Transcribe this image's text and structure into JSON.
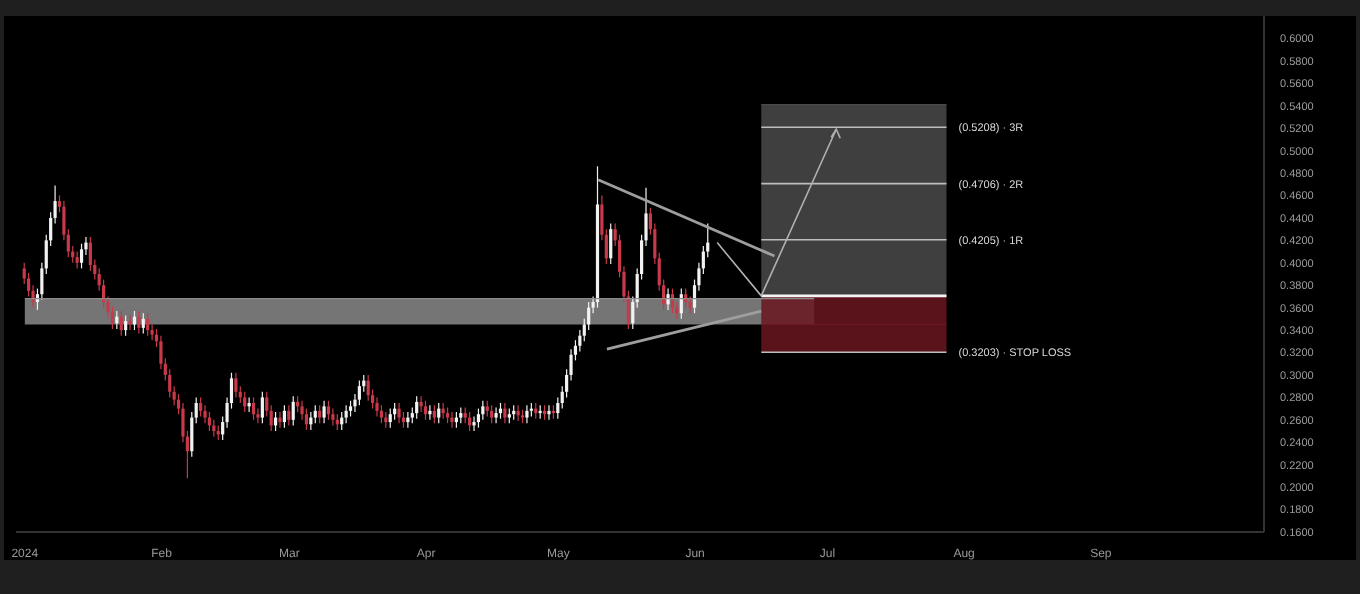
{
  "chart_data": {
    "type": "candlestick",
    "xlim": [
      "2023-12-30",
      "2024-10-08"
    ],
    "xticks": [
      {
        "value": "2024-01-01",
        "label": "2024"
      },
      {
        "value": "2024-02-01",
        "label": "Feb"
      },
      {
        "value": "2024-03-01",
        "label": "Mar"
      },
      {
        "value": "2024-04-01",
        "label": "Apr"
      },
      {
        "value": "2024-05-01",
        "label": "May"
      },
      {
        "value": "2024-06-01",
        "label": "Jun"
      },
      {
        "value": "2024-07-01",
        "label": "Jul"
      },
      {
        "value": "2024-08-01",
        "label": "Aug"
      },
      {
        "value": "2024-09-01",
        "label": "Sep"
      }
    ],
    "ylim": [
      0.16,
      0.62
    ],
    "yticks": [
      {
        "value": 0.16,
        "label": "0.1600"
      },
      {
        "value": 0.18,
        "label": "0.1800"
      },
      {
        "value": 0.2,
        "label": "0.2000"
      },
      {
        "value": 0.22,
        "label": "0.2200"
      },
      {
        "value": 0.24,
        "label": "0.2400"
      },
      {
        "value": 0.26,
        "label": "0.2600"
      },
      {
        "value": 0.28,
        "label": "0.2800"
      },
      {
        "value": 0.3,
        "label": "0.3000"
      },
      {
        "value": 0.32,
        "label": "0.3200"
      },
      {
        "value": 0.34,
        "label": "0.3400"
      },
      {
        "value": 0.36,
        "label": "0.3600"
      },
      {
        "value": 0.38,
        "label": "0.3800"
      },
      {
        "value": 0.4,
        "label": "0.4000"
      },
      {
        "value": 0.42,
        "label": "0.4200"
      },
      {
        "value": 0.44,
        "label": "0.4400"
      },
      {
        "value": 0.46,
        "label": "0.4600"
      },
      {
        "value": 0.48,
        "label": "0.4800"
      },
      {
        "value": 0.5,
        "label": "0.5000"
      },
      {
        "value": 0.52,
        "label": "0.5200"
      },
      {
        "value": 0.54,
        "label": "0.5400"
      },
      {
        "value": 0.56,
        "label": "0.5600"
      },
      {
        "value": 0.58,
        "label": "0.5800"
      },
      {
        "value": 0.6,
        "label": "0.6000"
      }
    ],
    "x": [
      "2024-01-01",
      "2024-01-02",
      "2024-01-03",
      "2024-01-04",
      "2024-01-05",
      "2024-01-06",
      "2024-01-07",
      "2024-01-08",
      "2024-01-09",
      "2024-01-10",
      "2024-01-11",
      "2024-01-12",
      "2024-01-13",
      "2024-01-14",
      "2024-01-15",
      "2024-01-16",
      "2024-01-17",
      "2024-01-18",
      "2024-01-19",
      "2024-01-20",
      "2024-01-21",
      "2024-01-22",
      "2024-01-23",
      "2024-01-24",
      "2024-01-25",
      "2024-01-26",
      "2024-01-27",
      "2024-01-28",
      "2024-01-29",
      "2024-01-30",
      "2024-01-31",
      "2024-02-01",
      "2024-02-02",
      "2024-02-03",
      "2024-02-04",
      "2024-02-05",
      "2024-02-06",
      "2024-02-07",
      "2024-02-08",
      "2024-02-09",
      "2024-02-10",
      "2024-02-11",
      "2024-02-12",
      "2024-02-13",
      "2024-02-14",
      "2024-02-15",
      "2024-02-16",
      "2024-02-17",
      "2024-02-18",
      "2024-02-19",
      "2024-02-20",
      "2024-02-21",
      "2024-02-22",
      "2024-02-23",
      "2024-02-24",
      "2024-02-25",
      "2024-02-26",
      "2024-02-27",
      "2024-02-28",
      "2024-02-29",
      "2024-03-01",
      "2024-03-02",
      "2024-03-03",
      "2024-03-04",
      "2024-03-05",
      "2024-03-06",
      "2024-03-07",
      "2024-03-08",
      "2024-03-09",
      "2024-03-10",
      "2024-03-11",
      "2024-03-12",
      "2024-03-13",
      "2024-03-14",
      "2024-03-15",
      "2024-03-16",
      "2024-03-17",
      "2024-03-18",
      "2024-03-19",
      "2024-03-20",
      "2024-03-21",
      "2024-03-22",
      "2024-03-23",
      "2024-03-24",
      "2024-03-25",
      "2024-03-26",
      "2024-03-27",
      "2024-03-28",
      "2024-03-29",
      "2024-03-30",
      "2024-03-31",
      "2024-04-01",
      "2024-04-02",
      "2024-04-03",
      "2024-04-04",
      "2024-04-05",
      "2024-04-06",
      "2024-04-07",
      "2024-04-08",
      "2024-04-09",
      "2024-04-10",
      "2024-04-11",
      "2024-04-12",
      "2024-04-13",
      "2024-04-14",
      "2024-04-15",
      "2024-04-16",
      "2024-04-17",
      "2024-04-18",
      "2024-04-19",
      "2024-04-20",
      "2024-04-21",
      "2024-04-22",
      "2024-04-23",
      "2024-04-24",
      "2024-04-25",
      "2024-04-26",
      "2024-04-27",
      "2024-04-28",
      "2024-04-29",
      "2024-04-30",
      "2024-05-01",
      "2024-05-02",
      "2024-05-03",
      "2024-05-04",
      "2024-05-05",
      "2024-05-06",
      "2024-05-07",
      "2024-05-08",
      "2024-05-09",
      "2024-05-10",
      "2024-05-11",
      "2024-05-12",
      "2024-05-13",
      "2024-05-14",
      "2024-05-15",
      "2024-05-16",
      "2024-05-17",
      "2024-05-18",
      "2024-05-19",
      "2024-05-20",
      "2024-05-21",
      "2024-05-22",
      "2024-05-23",
      "2024-05-24",
      "2024-05-25",
      "2024-05-26",
      "2024-05-27",
      "2024-05-28",
      "2024-05-29",
      "2024-05-30",
      "2024-05-31",
      "2024-06-01",
      "2024-06-02",
      "2024-06-03",
      "2024-06-04"
    ],
    "ohlc": [
      [
        0.395,
        0.4,
        0.381,
        0.386
      ],
      [
        0.386,
        0.391,
        0.37,
        0.375
      ],
      [
        0.375,
        0.38,
        0.36,
        0.365
      ],
      [
        0.365,
        0.377,
        0.358,
        0.372
      ],
      [
        0.372,
        0.4,
        0.367,
        0.395
      ],
      [
        0.395,
        0.425,
        0.39,
        0.42
      ],
      [
        0.42,
        0.445,
        0.415,
        0.44
      ],
      [
        0.44,
        0.469,
        0.435,
        0.455
      ],
      [
        0.455,
        0.46,
        0.445,
        0.45
      ],
      [
        0.45,
        0.455,
        0.42,
        0.425
      ],
      [
        0.425,
        0.43,
        0.405,
        0.41
      ],
      [
        0.41,
        0.415,
        0.4,
        0.405
      ],
      [
        0.405,
        0.41,
        0.395,
        0.4
      ],
      [
        0.4,
        0.417,
        0.395,
        0.412
      ],
      [
        0.412,
        0.423,
        0.407,
        0.418
      ],
      [
        0.418,
        0.423,
        0.393,
        0.398
      ],
      [
        0.398,
        0.403,
        0.385,
        0.39
      ],
      [
        0.39,
        0.395,
        0.375,
        0.38
      ],
      [
        0.38,
        0.385,
        0.36,
        0.365
      ],
      [
        0.365,
        0.37,
        0.351,
        0.356
      ],
      [
        0.356,
        0.361,
        0.341,
        0.346
      ],
      [
        0.346,
        0.357,
        0.341,
        0.352
      ],
      [
        0.352,
        0.357,
        0.335,
        0.34
      ],
      [
        0.34,
        0.353,
        0.335,
        0.348
      ],
      [
        0.348,
        0.353,
        0.34,
        0.345
      ],
      [
        0.345,
        0.357,
        0.34,
        0.352
      ],
      [
        0.352,
        0.357,
        0.337,
        0.342
      ],
      [
        0.342,
        0.355,
        0.337,
        0.35
      ],
      [
        0.35,
        0.355,
        0.335,
        0.34
      ],
      [
        0.34,
        0.345,
        0.331,
        0.336
      ],
      [
        0.336,
        0.341,
        0.325,
        0.33
      ],
      [
        0.33,
        0.335,
        0.305,
        0.31
      ],
      [
        0.31,
        0.315,
        0.295,
        0.3
      ],
      [
        0.3,
        0.305,
        0.28,
        0.285
      ],
      [
        0.285,
        0.29,
        0.273,
        0.278
      ],
      [
        0.278,
        0.283,
        0.265,
        0.27
      ],
      [
        0.27,
        0.275,
        0.24,
        0.245
      ],
      [
        0.245,
        0.25,
        0.208,
        0.232
      ],
      [
        0.232,
        0.267,
        0.227,
        0.262
      ],
      [
        0.262,
        0.28,
        0.257,
        0.275
      ],
      [
        0.275,
        0.28,
        0.263,
        0.268
      ],
      [
        0.268,
        0.273,
        0.257,
        0.262
      ],
      [
        0.262,
        0.267,
        0.25,
        0.255
      ],
      [
        0.255,
        0.26,
        0.245,
        0.25
      ],
      [
        0.25,
        0.255,
        0.242,
        0.247
      ],
      [
        0.247,
        0.263,
        0.242,
        0.258
      ],
      [
        0.258,
        0.28,
        0.253,
        0.275
      ],
      [
        0.275,
        0.302,
        0.27,
        0.297
      ],
      [
        0.297,
        0.302,
        0.28,
        0.285
      ],
      [
        0.285,
        0.29,
        0.275,
        0.28
      ],
      [
        0.28,
        0.285,
        0.267,
        0.272
      ],
      [
        0.272,
        0.28,
        0.267,
        0.275
      ],
      [
        0.275,
        0.28,
        0.26,
        0.265
      ],
      [
        0.265,
        0.27,
        0.257,
        0.262
      ],
      [
        0.262,
        0.285,
        0.257,
        0.28
      ],
      [
        0.28,
        0.285,
        0.263,
        0.268
      ],
      [
        0.268,
        0.273,
        0.25,
        0.255
      ],
      [
        0.255,
        0.267,
        0.25,
        0.262
      ],
      [
        0.262,
        0.267,
        0.253,
        0.258
      ],
      [
        0.258,
        0.273,
        0.253,
        0.268
      ],
      [
        0.268,
        0.273,
        0.255,
        0.26
      ],
      [
        0.26,
        0.281,
        0.255,
        0.276
      ],
      [
        0.276,
        0.281,
        0.267,
        0.272
      ],
      [
        0.272,
        0.277,
        0.26,
        0.265
      ],
      [
        0.265,
        0.27,
        0.251,
        0.256
      ],
      [
        0.256,
        0.267,
        0.251,
        0.262
      ],
      [
        0.262,
        0.273,
        0.257,
        0.268
      ],
      [
        0.268,
        0.273,
        0.257,
        0.262
      ],
      [
        0.262,
        0.277,
        0.257,
        0.272
      ],
      [
        0.272,
        0.277,
        0.26,
        0.265
      ],
      [
        0.265,
        0.27,
        0.255,
        0.26
      ],
      [
        0.26,
        0.265,
        0.251,
        0.256
      ],
      [
        0.256,
        0.267,
        0.251,
        0.262
      ],
      [
        0.262,
        0.273,
        0.257,
        0.268
      ],
      [
        0.268,
        0.277,
        0.263,
        0.272
      ],
      [
        0.272,
        0.283,
        0.267,
        0.278
      ],
      [
        0.278,
        0.295,
        0.273,
        0.29
      ],
      [
        0.29,
        0.3,
        0.285,
        0.295
      ],
      [
        0.295,
        0.3,
        0.277,
        0.282
      ],
      [
        0.282,
        0.287,
        0.27,
        0.275
      ],
      [
        0.275,
        0.28,
        0.263,
        0.268
      ],
      [
        0.268,
        0.273,
        0.257,
        0.262
      ],
      [
        0.262,
        0.267,
        0.253,
        0.258
      ],
      [
        0.258,
        0.27,
        0.253,
        0.265
      ],
      [
        0.265,
        0.275,
        0.26,
        0.27
      ],
      [
        0.27,
        0.275,
        0.257,
        0.262
      ],
      [
        0.262,
        0.267,
        0.253,
        0.258
      ],
      [
        0.258,
        0.267,
        0.253,
        0.262
      ],
      [
        0.262,
        0.271,
        0.257,
        0.266
      ],
      [
        0.266,
        0.281,
        0.261,
        0.276
      ],
      [
        0.276,
        0.281,
        0.267,
        0.272
      ],
      [
        0.272,
        0.277,
        0.26,
        0.265
      ],
      [
        0.265,
        0.273,
        0.26,
        0.268
      ],
      [
        0.268,
        0.273,
        0.257,
        0.262
      ],
      [
        0.262,
        0.275,
        0.257,
        0.27
      ],
      [
        0.27,
        0.275,
        0.261,
        0.266
      ],
      [
        0.266,
        0.271,
        0.257,
        0.262
      ],
      [
        0.262,
        0.267,
        0.253,
        0.258
      ],
      [
        0.258,
        0.267,
        0.253,
        0.262
      ],
      [
        0.262,
        0.271,
        0.257,
        0.266
      ],
      [
        0.266,
        0.271,
        0.257,
        0.262
      ],
      [
        0.262,
        0.267,
        0.25,
        0.255
      ],
      [
        0.255,
        0.263,
        0.25,
        0.258
      ],
      [
        0.258,
        0.27,
        0.253,
        0.265
      ],
      [
        0.265,
        0.277,
        0.26,
        0.272
      ],
      [
        0.272,
        0.277,
        0.263,
        0.268
      ],
      [
        0.268,
        0.273,
        0.257,
        0.262
      ],
      [
        0.262,
        0.271,
        0.257,
        0.266
      ],
      [
        0.266,
        0.275,
        0.261,
        0.27
      ],
      [
        0.27,
        0.275,
        0.257,
        0.262
      ],
      [
        0.262,
        0.27,
        0.257,
        0.265
      ],
      [
        0.265,
        0.273,
        0.26,
        0.268
      ],
      [
        0.268,
        0.273,
        0.259,
        0.264
      ],
      [
        0.264,
        0.269,
        0.257,
        0.262
      ],
      [
        0.262,
        0.273,
        0.257,
        0.268
      ],
      [
        0.268,
        0.275,
        0.263,
        0.27
      ],
      [
        0.27,
        0.275,
        0.261,
        0.266
      ],
      [
        0.266,
        0.273,
        0.261,
        0.268
      ],
      [
        0.268,
        0.273,
        0.26,
        0.265
      ],
      [
        0.265,
        0.273,
        0.26,
        0.268
      ],
      [
        0.268,
        0.273,
        0.261,
        0.266
      ],
      [
        0.266,
        0.28,
        0.261,
        0.275
      ],
      [
        0.275,
        0.29,
        0.27,
        0.285
      ],
      [
        0.285,
        0.305,
        0.28,
        0.3
      ],
      [
        0.3,
        0.323,
        0.295,
        0.318
      ],
      [
        0.318,
        0.331,
        0.313,
        0.326
      ],
      [
        0.326,
        0.34,
        0.321,
        0.335
      ],
      [
        0.335,
        0.35,
        0.33,
        0.345
      ],
      [
        0.345,
        0.365,
        0.34,
        0.36
      ],
      [
        0.36,
        0.37,
        0.355,
        0.365
      ],
      [
        0.365,
        0.486,
        0.36,
        0.452
      ],
      [
        0.452,
        0.46,
        0.42,
        0.425
      ],
      [
        0.425,
        0.43,
        0.399,
        0.404
      ],
      [
        0.404,
        0.435,
        0.399,
        0.43
      ],
      [
        0.43,
        0.435,
        0.415,
        0.42
      ],
      [
        0.42,
        0.425,
        0.387,
        0.392
      ],
      [
        0.392,
        0.397,
        0.365,
        0.37
      ],
      [
        0.37,
        0.375,
        0.341,
        0.346
      ],
      [
        0.346,
        0.37,
        0.341,
        0.365
      ],
      [
        0.365,
        0.395,
        0.36,
        0.39
      ],
      [
        0.39,
        0.425,
        0.385,
        0.42
      ],
      [
        0.42,
        0.467,
        0.415,
        0.444
      ],
      [
        0.444,
        0.449,
        0.425,
        0.43
      ],
      [
        0.43,
        0.435,
        0.399,
        0.404
      ],
      [
        0.404,
        0.409,
        0.375,
        0.38
      ],
      [
        0.38,
        0.385,
        0.358,
        0.363
      ],
      [
        0.363,
        0.377,
        0.358,
        0.372
      ],
      [
        0.372,
        0.377,
        0.355,
        0.36
      ],
      [
        0.36,
        0.365,
        0.35,
        0.355
      ],
      [
        0.355,
        0.377,
        0.35,
        0.372
      ],
      [
        0.372,
        0.377,
        0.36,
        0.365
      ],
      [
        0.365,
        0.37,
        0.355,
        0.36
      ],
      [
        0.36,
        0.385,
        0.355,
        0.38
      ],
      [
        0.38,
        0.4,
        0.375,
        0.395
      ],
      [
        0.395,
        0.415,
        0.39,
        0.41
      ],
      [
        0.41,
        0.435,
        0.405,
        0.418
      ]
    ],
    "series": [
      {
        "type": "line",
        "color": "#8a8a8a",
        "x": [
          "2024-01-01",
          "2024-06-28"
        ],
        "values": [
          0.368,
          0.368
        ],
        "lower": [
          0.345,
          0.345
        ],
        "upper": [
          0.368,
          0.368
        ]
      },
      {
        "type": "line",
        "color": "#4a4a4a",
        "x": [
          "2024-06-16",
          "2024-07-28"
        ],
        "values": [
          0.541,
          0.541
        ],
        "lower": [
          0.3705,
          0.3705
        ],
        "upper": [
          0.541,
          0.541
        ]
      },
      {
        "type": "line",
        "color": "#6b1620",
        "x": [
          "2024-06-16",
          "2024-07-28"
        ],
        "values": [
          0.345,
          0.345
        ],
        "lower": [
          0.3203,
          0.3203
        ],
        "upper": [
          0.3705,
          0.3705
        ]
      },
      {
        "type": "line",
        "name": "(0.5208) · 3R",
        "color": "#bdbdbd",
        "x": [
          "2024-06-16",
          "2024-07-28"
        ],
        "values": [
          0.5208,
          0.5208
        ]
      },
      {
        "type": "line",
        "name": "(0.4706) · 2R",
        "color": "#bdbdbd",
        "x": [
          "2024-06-16",
          "2024-07-28"
        ],
        "values": [
          0.4706,
          0.4706
        ]
      },
      {
        "type": "line",
        "name": "(0.4205) · 1R",
        "color": "#bdbdbd",
        "x": [
          "2024-06-16",
          "2024-07-28"
        ],
        "values": [
          0.4205,
          0.4205
        ]
      },
      {
        "type": "line",
        "color": "#f5f5f5",
        "x": [
          "2024-06-16",
          "2024-07-28"
        ],
        "values": [
          0.3705,
          0.3705
        ]
      },
      {
        "type": "line",
        "name": "(0.3203) · STOP LOSS",
        "color": "#bdbdbd",
        "x": [
          "2024-06-16",
          "2024-07-28"
        ],
        "values": [
          0.3203,
          0.3203
        ]
      },
      {
        "type": "line",
        "color": "#9e9e9e",
        "x": [
          "2024-05-10",
          "2024-06-19"
        ],
        "values": [
          0.474,
          0.406
        ]
      },
      {
        "type": "line",
        "color": "#9e9e9e",
        "x": [
          "2024-05-12",
          "2024-06-16"
        ],
        "values": [
          0.323,
          0.357
        ]
      },
      {
        "type": "line",
        "color": "#b0b0b0",
        "x": [
          "2024-06-06",
          "2024-06-16",
          "2024-07-03"
        ],
        "values": [
          0.418,
          0.3705,
          0.519
        ]
      }
    ]
  }
}
